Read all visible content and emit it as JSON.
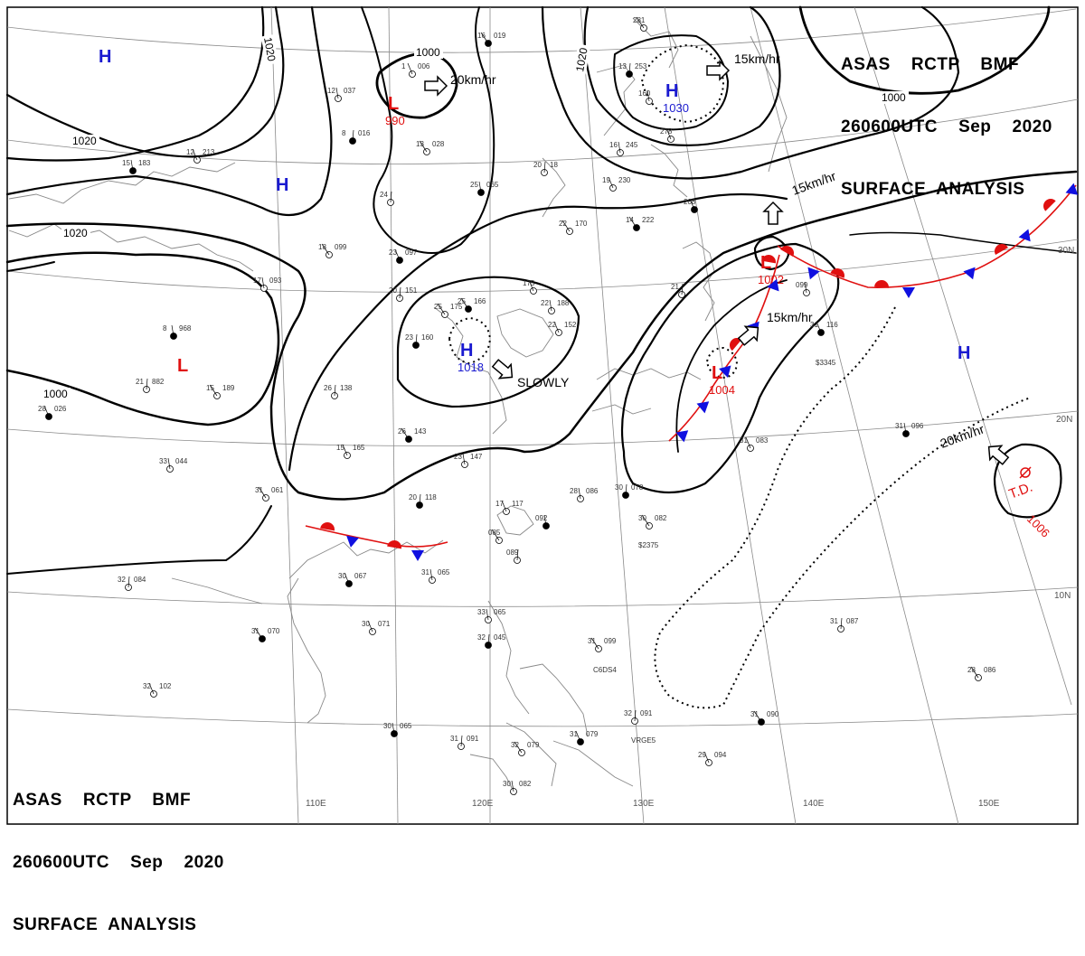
{
  "header": {
    "line1": "ASAS    RCTP    BMF",
    "line2": "260600UTC    Sep    2020",
    "line3": "SURFACE  ANALYSIS"
  },
  "footer": {
    "line1": "ASAS    RCTP    BMF",
    "line2": "260600UTC    Sep    2020",
    "line3": "SURFACE  ANALYSIS"
  },
  "longitude_labels": [
    "110E",
    "120E",
    "130E",
    "140E",
    "150E"
  ],
  "latitude_labels": [
    "30N",
    "20N",
    "10N"
  ],
  "isobar_labels": [
    "1020",
    "1000",
    "1020",
    "1000",
    "1020",
    "1020",
    "1000"
  ],
  "pressure_systems": [
    {
      "type": "H",
      "value": "",
      "color": "#1a1ad0"
    },
    {
      "type": "H",
      "value": "",
      "color": "#1a1ad0"
    },
    {
      "type": "H",
      "value": "1030",
      "color": "#1a1ad0"
    },
    {
      "type": "L",
      "value": "990",
      "color": "#e01010"
    },
    {
      "type": "L",
      "value": "",
      "color": "#e01010"
    },
    {
      "type": "H",
      "value": "1018",
      "color": "#1a1ad0"
    },
    {
      "type": "L",
      "value": "1002",
      "color": "#e01010"
    },
    {
      "type": "L",
      "value": "1004",
      "color": "#e01010"
    },
    {
      "type": "H",
      "value": "",
      "color": "#1a1ad0"
    }
  ],
  "tropical_depression": {
    "label": "T.D.",
    "value": "1006",
    "color": "#e01010"
  },
  "movements": [
    "20km/hr",
    "15km/hr",
    "15km/hr",
    "15km/hr",
    "SLOWLY",
    "20km/hr"
  ],
  "station_obs": [
    {
      "t": "16",
      "p": "019"
    },
    {
      "t": "1",
      "p": "006"
    },
    {
      "t": "12",
      "p": "037"
    },
    {
      "t": "8",
      "p": "016"
    },
    {
      "t": "13",
      "p": "028"
    },
    {
      "t": "12",
      "p": "213"
    },
    {
      "t": "15",
      "p": "183"
    },
    {
      "t": "24",
      "p": ""
    },
    {
      "t": "18",
      "p": "099"
    },
    {
      "t": "23",
      "p": "097"
    },
    {
      "t": "17",
      "p": "093"
    },
    {
      "t": "20",
      "p": "151"
    },
    {
      "t": "25",
      "p": "166"
    },
    {
      "t": "175",
      "p": ""
    },
    {
      "t": "22",
      "p": "188"
    },
    {
      "t": "23",
      "p": "160"
    },
    {
      "t": "25",
      "p": "175"
    },
    {
      "t": "22",
      "p": "152"
    },
    {
      "t": "8",
      "p": "968"
    },
    {
      "t": "21",
      "p": "882"
    },
    {
      "t": "15",
      "p": "189"
    },
    {
      "t": "28",
      "p": "026"
    },
    {
      "t": "33",
      "p": "044"
    },
    {
      "t": "26",
      "p": "138"
    },
    {
      "t": "26",
      "p": "143"
    },
    {
      "t": "15",
      "p": "165"
    },
    {
      "t": "23",
      "p": "147"
    },
    {
      "t": "20",
      "p": "118"
    },
    {
      "t": "31",
      "p": "061"
    },
    {
      "t": "17",
      "p": "117"
    },
    {
      "t": "092",
      "p": ""
    },
    {
      "t": "089",
      "p": ""
    },
    {
      "t": "085",
      "p": ""
    },
    {
      "t": "30",
      "p": "067"
    },
    {
      "t": "31",
      "p": "065"
    },
    {
      "t": "32",
      "p": "084"
    },
    {
      "t": "31",
      "p": "070"
    },
    {
      "t": "30",
      "p": "071"
    },
    {
      "t": "33",
      "p": "065"
    },
    {
      "t": "32",
      "p": "045"
    },
    {
      "t": "31",
      "p": "099"
    },
    {
      "t": "32",
      "p": "102"
    },
    {
      "t": "30",
      "p": "065"
    },
    {
      "t": "31",
      "p": "091"
    },
    {
      "t": "32",
      "p": "079"
    },
    {
      "t": "31",
      "p": "079"
    },
    {
      "t": "30",
      "p": "082"
    },
    {
      "t": "32",
      "p": "091"
    },
    {
      "t": "31",
      "p": "090"
    },
    {
      "t": "29",
      "p": "094"
    },
    {
      "t": "28",
      "p": "086"
    },
    {
      "t": "30",
      "p": "078"
    },
    {
      "t": "30",
      "p": "082"
    },
    {
      "t": "31",
      "p": "083"
    },
    {
      "t": "31",
      "p": "096"
    },
    {
      "t": "31",
      "p": "087"
    },
    {
      "t": "28",
      "p": "086"
    },
    {
      "t": "31",
      "p": "116"
    },
    {
      "t": "099",
      "p": ""
    },
    {
      "t": "21",
      "p": ""
    },
    {
      "t": "14",
      "p": "222"
    },
    {
      "t": "19",
      "p": "230"
    },
    {
      "t": "16",
      "p": "245"
    },
    {
      "t": "13",
      "p": "253"
    },
    {
      "t": "281",
      "p": ""
    },
    {
      "t": "278",
      "p": ""
    },
    {
      "t": "25",
      "p": "065"
    },
    {
      "t": "20",
      "p": "18"
    },
    {
      "t": "22",
      "p": "170"
    },
    {
      "t": "208",
      "p": ""
    },
    {
      "t": "160",
      "p": ""
    }
  ],
  "station_codes": [
    "$3345",
    "$2375",
    "C6DS4",
    "VRGE5"
  ],
  "colors": {
    "isobar": "#000000",
    "warm_front": "#e01010",
    "cold_front": "#1010e0",
    "grid": "#808080",
    "coast": "#808080"
  }
}
